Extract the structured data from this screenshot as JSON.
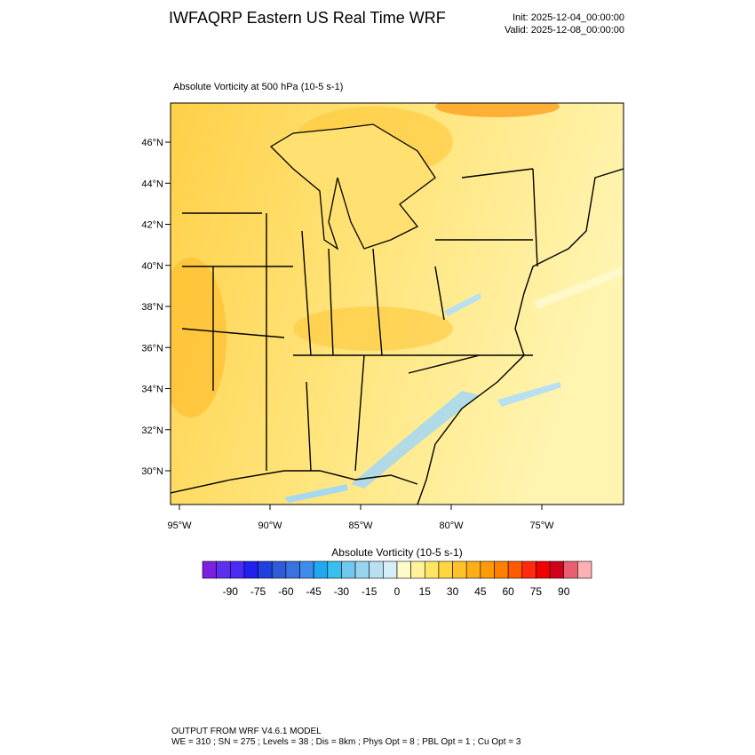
{
  "header": {
    "title": "IWFAQRP Eastern US Real Time WRF",
    "init": "Init: 2025-12-04_00:00:00",
    "valid": "Valid: 2025-12-08_00:00:00"
  },
  "map": {
    "subtitle": "Absolute Vorticity at 500 hPa   (10-5 s-1)",
    "lat_labels": [
      "46°N",
      "44°N",
      "42°N",
      "40°N",
      "38°N",
      "36°N",
      "34°N",
      "32°N",
      "30°N"
    ],
    "lon_labels": [
      "95°W",
      "90°W",
      "85°W",
      "80°W",
      "75°W"
    ]
  },
  "colorbar": {
    "title": "Absolute Vorticity  (10-5 s-1)",
    "lim": [
      -105,
      105
    ],
    "ticks": [
      -90,
      -75,
      -60,
      -45,
      -30,
      -15,
      0,
      15,
      30,
      45,
      60,
      75,
      90
    ],
    "colors": [
      "#7b1fe0",
      "#5f2ff0",
      "#4a2af5",
      "#2020f0",
      "#2040e0",
      "#2e5bd8",
      "#3a72e2",
      "#3e8cec",
      "#20a8f0",
      "#38bff0",
      "#70c8f0",
      "#98d4f0",
      "#b8e0f2",
      "#d6eef8",
      "#fffbc8",
      "#fff29a",
      "#ffe566",
      "#ffd640",
      "#ffc228",
      "#ffae18",
      "#ff9a08",
      "#ff8000",
      "#ff5a00",
      "#ff2a10",
      "#f00000",
      "#d0001a",
      "#e86070",
      "#ffb0b0"
    ]
  },
  "footer": {
    "line1": "OUTPUT FROM WRF V4.6.1 MODEL",
    "line2": "WE = 310 ; SN = 275 ; Levels = 38 ; Dis = 8km ; Phys Opt = 8 ; PBL Opt = 1 ; Cu Opt = 3"
  }
}
